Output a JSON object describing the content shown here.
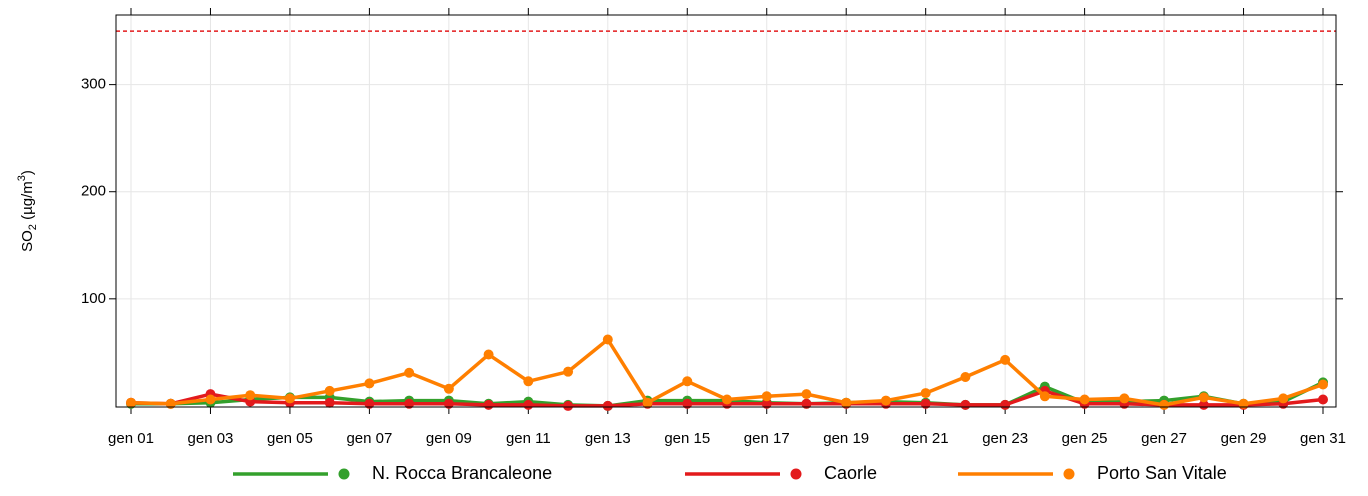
{
  "chart_data": {
    "type": "line",
    "ylabel": [
      "SO",
      "2",
      " (µg/m",
      "3",
      ")"
    ],
    "categories": [
      "gen 01",
      null,
      "gen 03",
      null,
      "gen 05",
      null,
      "gen 07",
      null,
      "gen 09",
      null,
      "gen 11",
      null,
      "gen 13",
      null,
      "gen 15",
      null,
      "gen 17",
      null,
      "gen 19",
      null,
      "gen 21",
      null,
      "gen 23",
      null,
      "gen 25",
      null,
      "gen 27",
      null,
      "gen 29",
      null,
      "gen 31"
    ],
    "series": [
      {
        "name": "N. Rocca Brancaleone",
        "color": "#33a02c",
        "values": [
          2,
          2,
          3,
          6,
          8,
          8,
          4,
          5,
          5,
          2,
          4,
          1,
          0,
          5,
          5,
          5,
          3,
          2,
          3,
          4,
          3,
          1,
          1,
          18,
          3,
          4,
          5,
          9,
          2,
          4,
          22
        ]
      },
      {
        "name": "Caorle",
        "color": "#e31a1c",
        "values": [
          3,
          2,
          11,
          4,
          3,
          3,
          2,
          2,
          2,
          1,
          1,
          0,
          0,
          2,
          2,
          2,
          2,
          2,
          2,
          2,
          2,
          1,
          1,
          14,
          2,
          2,
          1,
          1,
          1,
          2,
          6
        ]
      },
      {
        "name": "Porto San Vitale",
        "color": "#ff7f00",
        "values": [
          3,
          2,
          6,
          10,
          7,
          14,
          21,
          31,
          16,
          48,
          23,
          32,
          62,
          3,
          23,
          6,
          9,
          11,
          3,
          5,
          12,
          27,
          43,
          9,
          6,
          7,
          1,
          8,
          2,
          7,
          20
        ]
      }
    ],
    "reference_line": {
      "value": 350,
      "color": "#e31a1c"
    },
    "ylim": [
      -1,
      365
    ],
    "yticks": [
      100,
      200,
      300
    ],
    "grid": true,
    "legend": "bottom"
  }
}
